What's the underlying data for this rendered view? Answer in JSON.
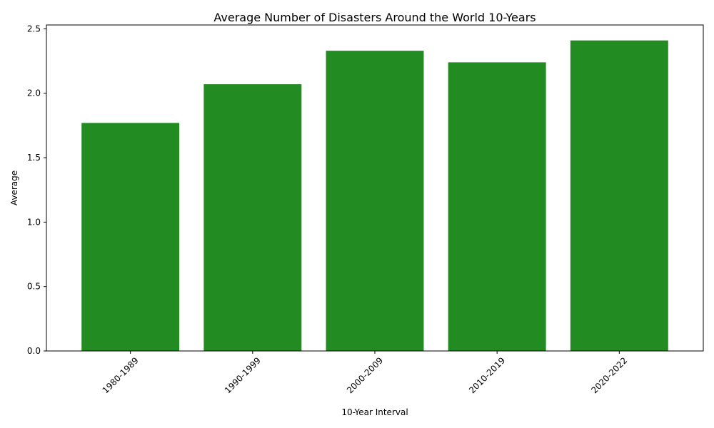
{
  "chart_data": {
    "type": "bar",
    "title": "Average Number of Disasters Around the World 10-Years",
    "xlabel": "10-Year Interval",
    "ylabel": "Average",
    "categories": [
      "1980-1989",
      "1990-1999",
      "2000-2009",
      "2010-2019",
      "2020-2022"
    ],
    "values": [
      1.77,
      2.07,
      2.33,
      2.24,
      2.41
    ],
    "ylim": [
      0,
      2.53
    ],
    "yticks": [
      0.0,
      0.5,
      1.0,
      1.5,
      2.0,
      2.5
    ],
    "ytick_labels": [
      "0.0",
      "0.5",
      "1.0",
      "1.5",
      "2.0",
      "2.5"
    ],
    "xtick_rotation": "45 degrees",
    "grid": false,
    "legend": "none",
    "bar_color": "#228b22"
  }
}
